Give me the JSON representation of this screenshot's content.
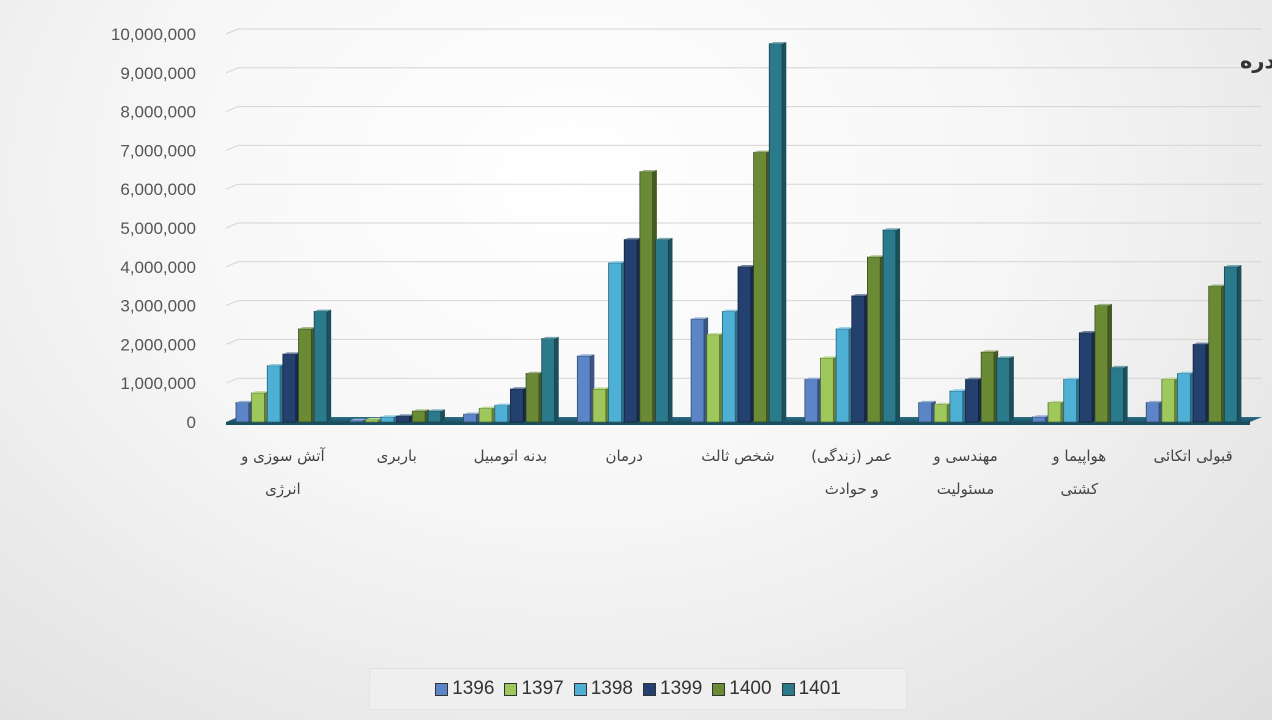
{
  "chart_data": {
    "type": "bar",
    "title": "حق بیمه صادره",
    "categories": [
      [
        "آتش سوزی و",
        "انرژی"
      ],
      [
        "باربری"
      ],
      [
        "بدنه اتومبیل"
      ],
      [
        "درمان"
      ],
      [
        "شخص ثالث"
      ],
      [
        "عمر (زندگی)",
        "و حوادث"
      ],
      [
        "مهندسی و",
        "مسئولیت"
      ],
      [
        "هواپیما و",
        "کشتی"
      ],
      [
        "قبولی اتکائی"
      ]
    ],
    "series": [
      {
        "name": "1396",
        "color": "#5b85c6",
        "values": [
          500000,
          40000,
          200000,
          1700000,
          2650000,
          1100000,
          500000,
          130000,
          500000
        ]
      },
      {
        "name": "1397",
        "color": "#9fc85c",
        "values": [
          750000,
          60000,
          350000,
          850000,
          2250000,
          1650000,
          450000,
          500000,
          1100000
        ]
      },
      {
        "name": "1398",
        "color": "#4fb0d6",
        "values": [
          1450000,
          130000,
          430000,
          4100000,
          2850000,
          2400000,
          800000,
          1100000,
          1250000
        ]
      },
      {
        "name": "1399",
        "color": "#24406e",
        "values": [
          1750000,
          150000,
          850000,
          4700000,
          4000000,
          3250000,
          1100000,
          2300000,
          2000000
        ]
      },
      {
        "name": "1400",
        "color": "#6a8a35",
        "values": [
          2400000,
          280000,
          1250000,
          6450000,
          6950000,
          4250000,
          1800000,
          3000000,
          3500000
        ]
      },
      {
        "name": "1401",
        "color": "#2b7a8c",
        "values": [
          2850000,
          280000,
          2150000,
          4700000,
          9750000,
          4950000,
          1650000,
          1400000,
          4000000
        ]
      }
    ],
    "y_ticks": [
      "0",
      "1,000,000",
      "2,000,000",
      "3,000,000",
      "4,000,000",
      "5,000,000",
      "6,000,000",
      "7,000,000",
      "8,000,000",
      "9,000,000",
      "10,000,000"
    ],
    "ylim": [
      0,
      10000000
    ],
    "legend_position": "bottom",
    "grid": true
  }
}
